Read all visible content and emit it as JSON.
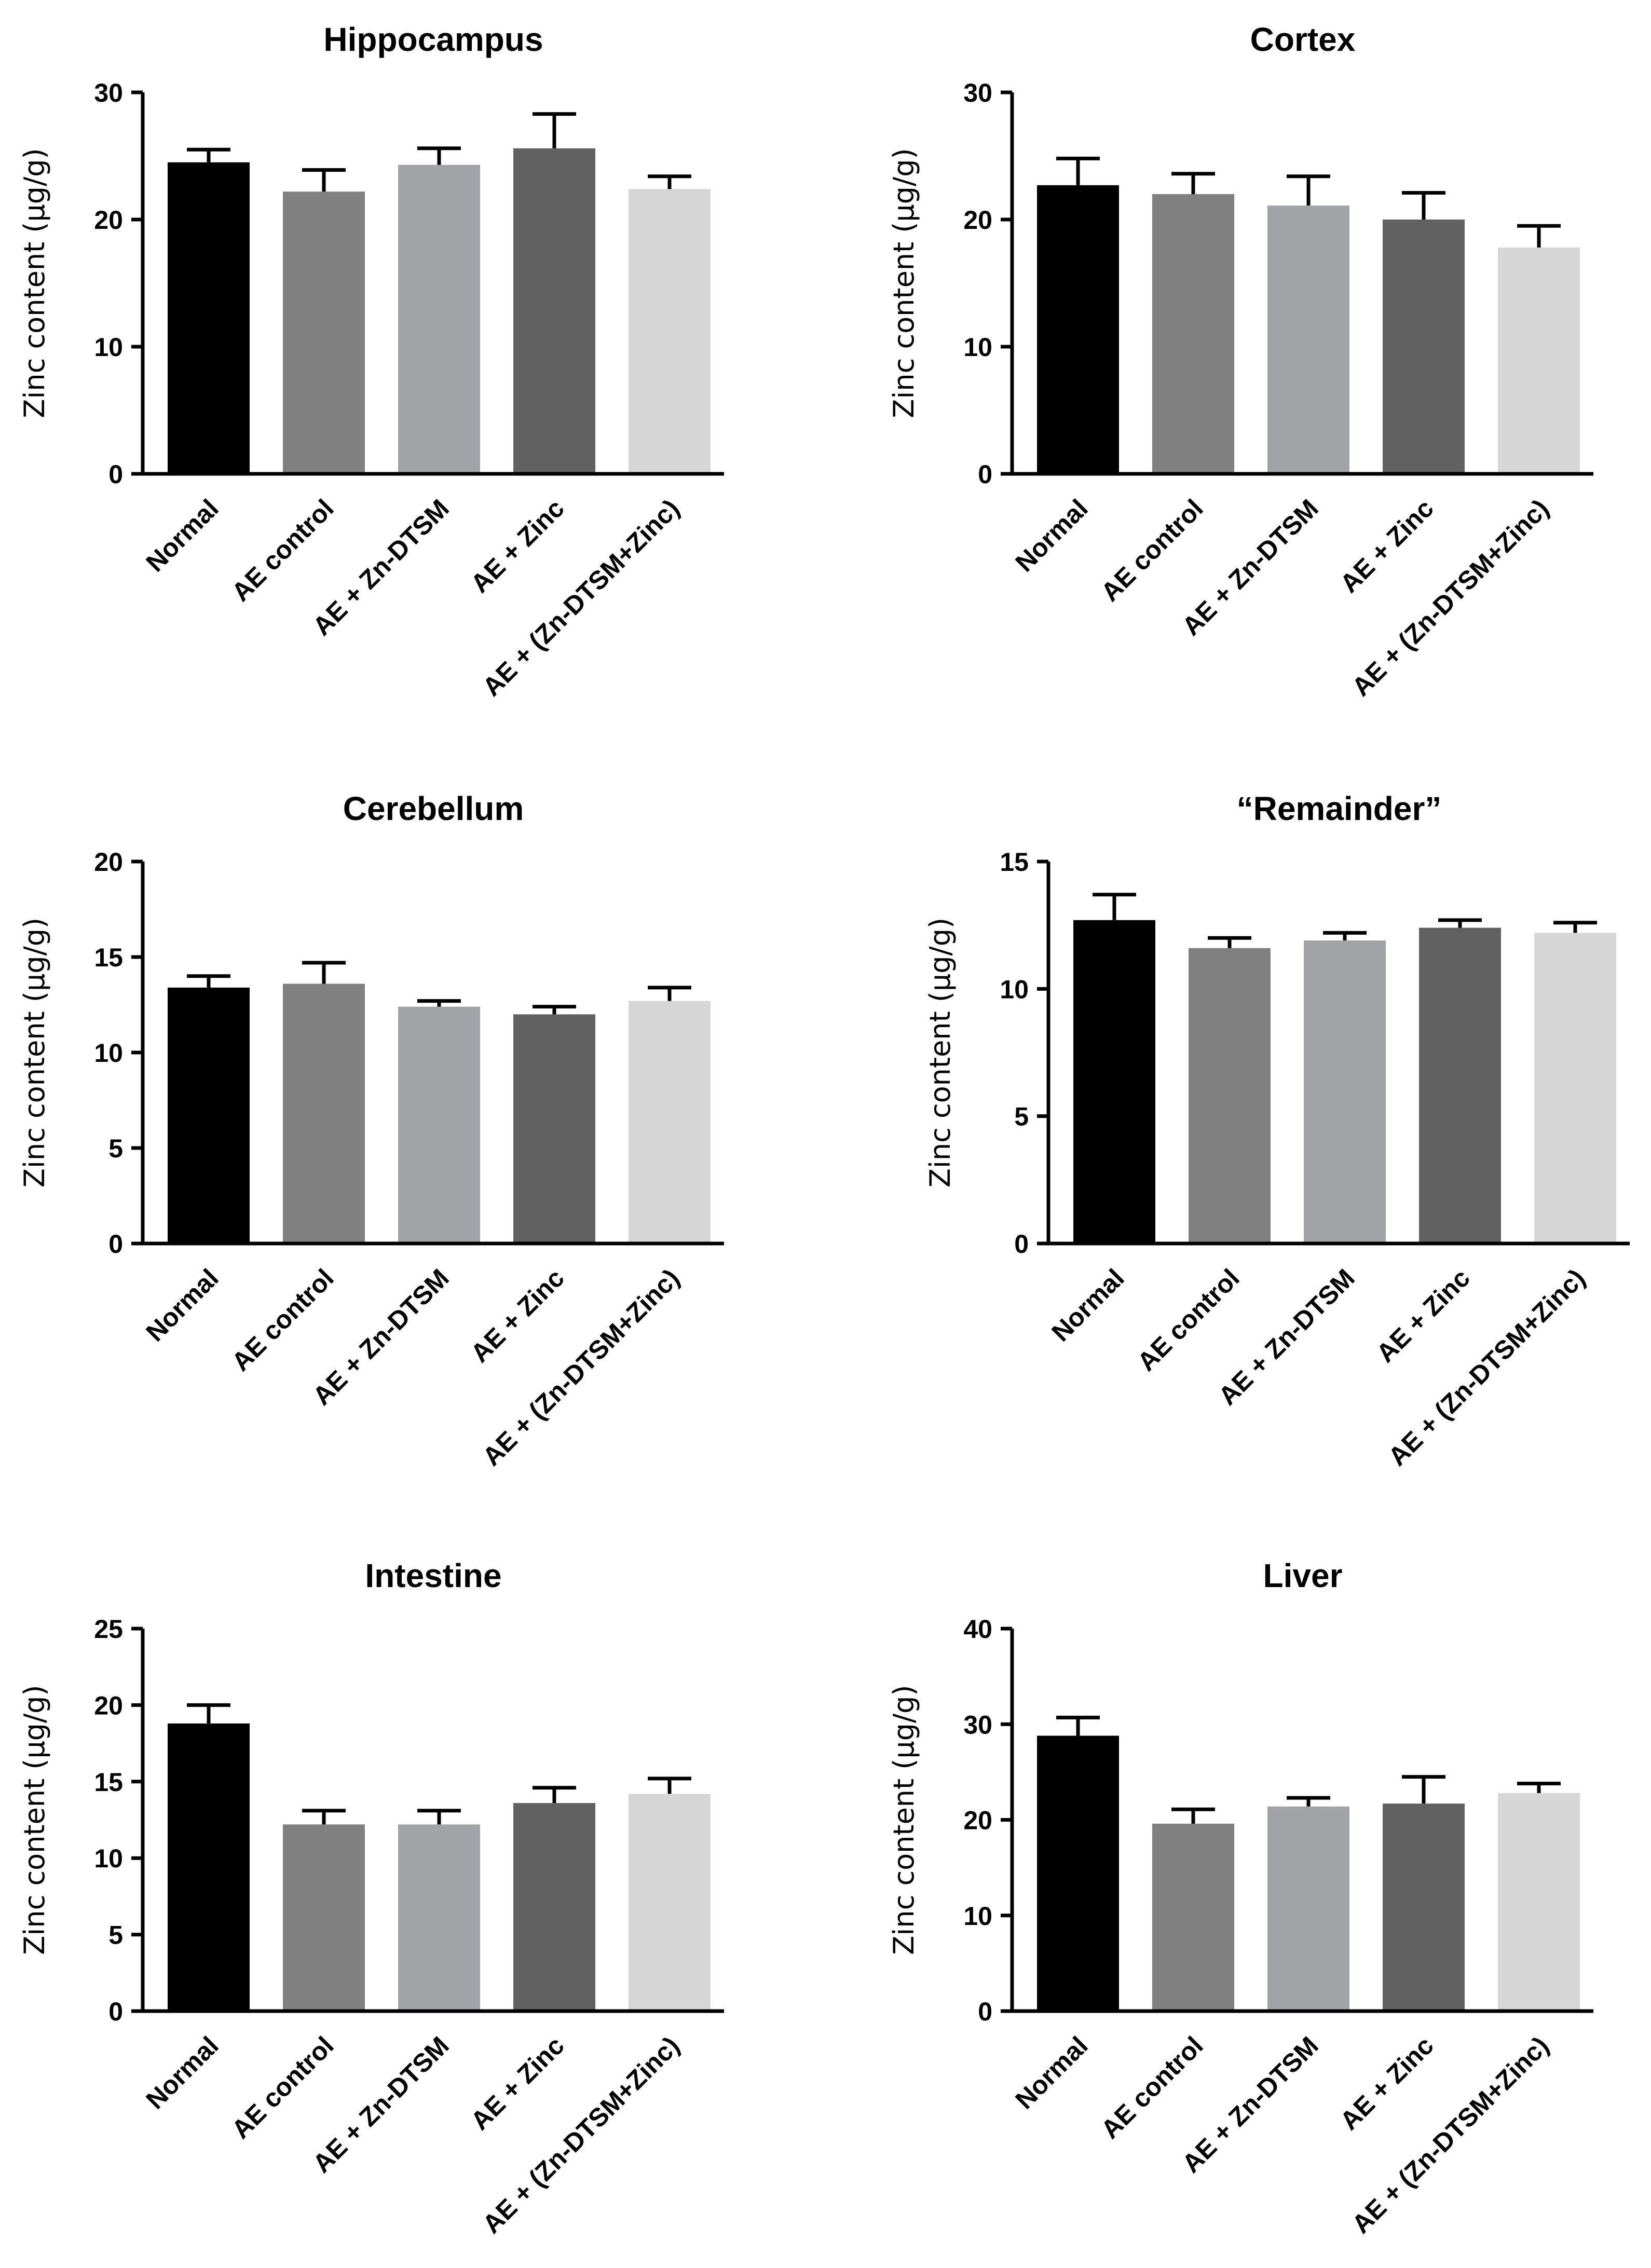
{
  "colors": {
    "bars": [
      "#000000",
      "#808080",
      "#a2a3a7",
      "#616161",
      "#d6d6d6"
    ],
    "axis": "#000000",
    "error_bar": "#000000"
  },
  "chart_data": [
    {
      "type": "bar",
      "title": "Hippocampus",
      "ylabel": "Zinc content (μg/g)",
      "categories": [
        "Normal",
        "AE control",
        "AE + Zn-DTSM",
        "AE + Zinc",
        "AE + (Zn-DTSM+Zinc)"
      ],
      "values": [
        24.5,
        22.2,
        24.3,
        25.6,
        22.4
      ],
      "errors": [
        1.0,
        1.7,
        1.3,
        2.7,
        1.0
      ],
      "ylim": [
        0,
        30
      ],
      "yticks": [
        0,
        10,
        20,
        30
      ],
      "grid": false,
      "legend": "none"
    },
    {
      "type": "bar",
      "title": "Cortex",
      "ylabel": "Zinc content (μg/g)",
      "categories": [
        "Normal",
        "AE control",
        "AE + Zn-DTSM",
        "AE + Zinc",
        "AE + (Zn-DTSM+Zinc)"
      ],
      "values": [
        22.7,
        22.0,
        21.1,
        20.0,
        17.8
      ],
      "errors": [
        2.1,
        1.6,
        2.3,
        2.1,
        1.7
      ],
      "ylim": [
        0,
        30
      ],
      "yticks": [
        0,
        10,
        20,
        30
      ],
      "grid": false,
      "legend": "none"
    },
    {
      "type": "bar",
      "title": "Cerebellum",
      "ylabel": "Zinc content (μg/g)",
      "categories": [
        "Normal",
        "AE control",
        "AE + Zn-DTSM",
        "AE + Zinc",
        "AE + (Zn-DTSM+Zinc)"
      ],
      "values": [
        13.4,
        13.6,
        12.4,
        12.0,
        12.7
      ],
      "errors": [
        0.6,
        1.1,
        0.3,
        0.4,
        0.7
      ],
      "ylim": [
        0,
        20
      ],
      "yticks": [
        0,
        5,
        10,
        15,
        20
      ],
      "grid": false,
      "legend": "none"
    },
    {
      "type": "bar",
      "title": "“Remainder”",
      "ylabel": "Zinc content (μg/g)",
      "categories": [
        "Normal",
        "AE control",
        "AE + Zn-DTSM",
        "AE + Zinc",
        "AE + (Zn-DTSM+Zinc)"
      ],
      "values": [
        12.7,
        11.6,
        11.9,
        12.4,
        12.2
      ],
      "errors": [
        1.0,
        0.4,
        0.3,
        0.3,
        0.4
      ],
      "ylim": [
        0,
        15
      ],
      "yticks": [
        0,
        5,
        10,
        15
      ],
      "grid": false,
      "legend": "none"
    },
    {
      "type": "bar",
      "title": "Intestine",
      "ylabel": "Zinc content (μg/g)",
      "categories": [
        "Normal",
        "AE control",
        "AE + Zn-DTSM",
        "AE + Zinc",
        "AE + (Zn-DTSM+Zinc)"
      ],
      "values": [
        18.8,
        12.2,
        12.2,
        13.6,
        14.2
      ],
      "errors": [
        1.2,
        0.9,
        0.9,
        1.0,
        1.0
      ],
      "ylim": [
        0,
        25
      ],
      "yticks": [
        0,
        5,
        10,
        15,
        20,
        25
      ],
      "grid": false,
      "legend": "none"
    },
    {
      "type": "bar",
      "title": "Liver",
      "ylabel": "Zinc content (μg/g)",
      "categories": [
        "Normal",
        "AE control",
        "AE + Zn-DTSM",
        "AE + Zinc",
        "AE + (Zn-DTSM+Zinc)"
      ],
      "values": [
        28.8,
        19.6,
        21.4,
        21.7,
        22.8
      ],
      "errors": [
        1.9,
        1.5,
        0.9,
        2.8,
        1.0
      ],
      "ylim": [
        0,
        40
      ],
      "yticks": [
        0,
        10,
        20,
        30,
        40
      ],
      "grid": false,
      "legend": "none"
    }
  ]
}
